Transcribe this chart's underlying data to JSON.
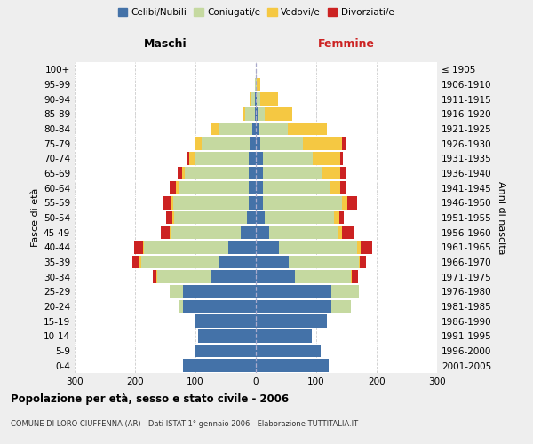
{
  "age_groups": [
    "0-4",
    "5-9",
    "10-14",
    "15-19",
    "20-24",
    "25-29",
    "30-34",
    "35-39",
    "40-44",
    "45-49",
    "50-54",
    "55-59",
    "60-64",
    "65-69",
    "70-74",
    "75-79",
    "80-84",
    "85-89",
    "90-94",
    "95-99",
    "100+"
  ],
  "birth_years": [
    "2001-2005",
    "1996-2000",
    "1991-1995",
    "1986-1990",
    "1981-1985",
    "1976-1980",
    "1971-1975",
    "1966-1970",
    "1961-1965",
    "1956-1960",
    "1951-1955",
    "1946-1950",
    "1941-1945",
    "1936-1940",
    "1931-1935",
    "1926-1930",
    "1921-1925",
    "1916-1920",
    "1911-1915",
    "1906-1910",
    "≤ 1905"
  ],
  "maschi": {
    "celibi": [
      120,
      100,
      95,
      100,
      120,
      120,
      75,
      60,
      45,
      25,
      15,
      12,
      12,
      12,
      12,
      10,
      6,
      2,
      2,
      0,
      0
    ],
    "coniugati": [
      0,
      0,
      0,
      0,
      8,
      22,
      88,
      130,
      140,
      115,
      120,
      125,
      115,
      105,
      90,
      80,
      55,
      15,
      6,
      2,
      0
    ],
    "vedovi": [
      0,
      0,
      0,
      0,
      0,
      0,
      2,
      2,
      2,
      3,
      3,
      3,
      5,
      5,
      8,
      10,
      12,
      5,
      2,
      0,
      0
    ],
    "divorziati": [
      0,
      0,
      0,
      0,
      0,
      0,
      6,
      12,
      15,
      15,
      10,
      15,
      10,
      8,
      3,
      2,
      0,
      0,
      0,
      0,
      0
    ]
  },
  "femmine": {
    "nubili": [
      120,
      108,
      92,
      118,
      125,
      125,
      65,
      55,
      38,
      22,
      15,
      12,
      12,
      12,
      12,
      8,
      5,
      3,
      2,
      0,
      0
    ],
    "coniugate": [
      0,
      0,
      0,
      0,
      32,
      45,
      92,
      115,
      130,
      115,
      115,
      130,
      110,
      98,
      82,
      70,
      48,
      12,
      5,
      2,
      0
    ],
    "vedove": [
      0,
      0,
      0,
      0,
      0,
      0,
      2,
      2,
      5,
      5,
      8,
      10,
      18,
      30,
      45,
      65,
      65,
      45,
      30,
      5,
      0
    ],
    "divorziate": [
      0,
      0,
      0,
      0,
      0,
      0,
      10,
      10,
      20,
      20,
      8,
      15,
      8,
      8,
      5,
      5,
      0,
      0,
      0,
      0,
      0
    ]
  },
  "colors": {
    "celibi": "#4472a8",
    "coniugati": "#c5d9a0",
    "vedovi": "#f5c842",
    "divorziati": "#cc2222"
  },
  "title": "Popolazione per età, sesso e stato civile - 2006",
  "subtitle": "COMUNE DI LORO CIUFFENNA (AR) - Dati ISTAT 1° gennaio 2006 - Elaborazione TUTTITALIA.IT",
  "xlabel_left": "Maschi",
  "xlabel_right": "Femmine",
  "ylabel_left": "Fasce di età",
  "ylabel_right": "Anni di nascita",
  "xlim": 300,
  "bg_color": "#eeeeee",
  "plot_bg": "#ffffff"
}
